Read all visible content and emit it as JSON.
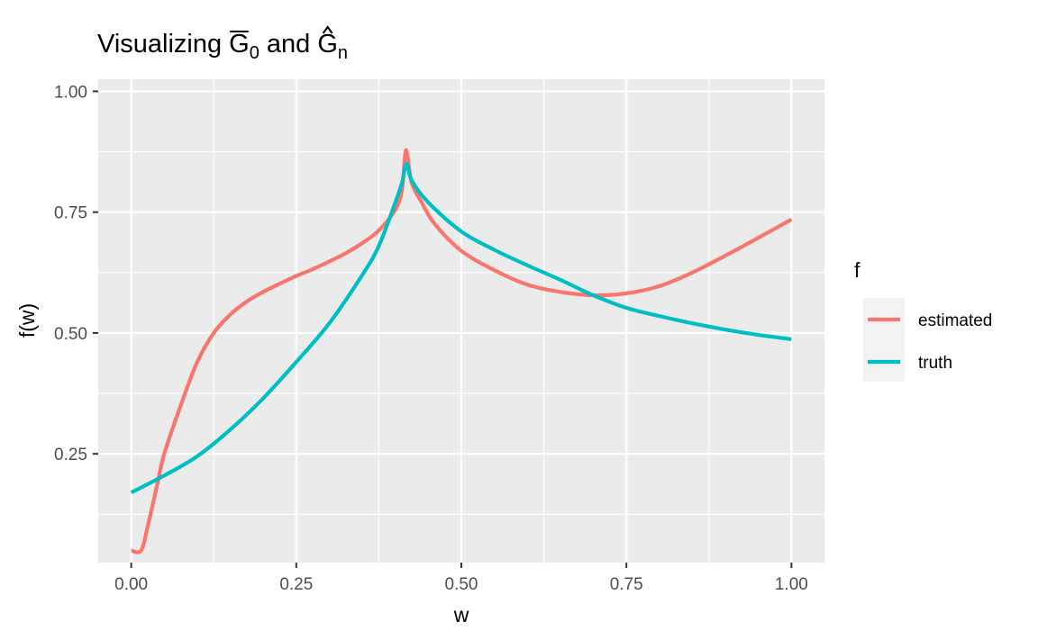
{
  "chart_data": {
    "type": "line",
    "title": {
      "prefix": "Visualizing ",
      "sym1": "G",
      "sub1": "0",
      "middle": " and ",
      "sym2": "G",
      "sub2": "n"
    },
    "xlabel": "w",
    "ylabel": "f(w)",
    "xlim": [
      -0.05,
      1.05
    ],
    "ylim": [
      0.025,
      1.025
    ],
    "x_ticks": [
      {
        "value": 0.0,
        "label": "0.00"
      },
      {
        "value": 0.25,
        "label": "0.25"
      },
      {
        "value": 0.5,
        "label": "0.50"
      },
      {
        "value": 0.75,
        "label": "0.75"
      },
      {
        "value": 1.0,
        "label": "1.00"
      }
    ],
    "y_ticks": [
      {
        "value": 0.25,
        "label": "0.25"
      },
      {
        "value": 0.5,
        "label": "0.50"
      },
      {
        "value": 0.75,
        "label": "0.75"
      },
      {
        "value": 1.0,
        "label": "1.00"
      }
    ],
    "grid": true,
    "legend": {
      "title": "f",
      "position": "right"
    },
    "series": [
      {
        "name": "estimated",
        "color": "#F8766D",
        "points": [
          [
            0.0,
            0.05
          ],
          [
            0.015,
            0.05
          ],
          [
            0.025,
            0.1
          ],
          [
            0.04,
            0.19
          ],
          [
            0.05,
            0.25
          ],
          [
            0.075,
            0.35
          ],
          [
            0.1,
            0.44
          ],
          [
            0.125,
            0.5
          ],
          [
            0.15,
            0.538
          ],
          [
            0.175,
            0.565
          ],
          [
            0.2,
            0.585
          ],
          [
            0.225,
            0.602
          ],
          [
            0.25,
            0.618
          ],
          [
            0.275,
            0.632
          ],
          [
            0.3,
            0.648
          ],
          [
            0.325,
            0.665
          ],
          [
            0.35,
            0.686
          ],
          [
            0.375,
            0.712
          ],
          [
            0.4,
            0.755
          ],
          [
            0.41,
            0.795
          ],
          [
            0.415,
            0.87
          ],
          [
            0.418,
            0.87
          ],
          [
            0.425,
            0.81
          ],
          [
            0.44,
            0.77
          ],
          [
            0.46,
            0.725
          ],
          [
            0.5,
            0.67
          ],
          [
            0.55,
            0.63
          ],
          [
            0.6,
            0.6
          ],
          [
            0.65,
            0.585
          ],
          [
            0.7,
            0.578
          ],
          [
            0.75,
            0.582
          ],
          [
            0.8,
            0.597
          ],
          [
            0.85,
            0.625
          ],
          [
            0.9,
            0.66
          ],
          [
            0.95,
            0.697
          ],
          [
            1.0,
            0.735
          ]
        ]
      },
      {
        "name": "truth",
        "color": "#00BFC4",
        "points": [
          [
            0.0,
            0.17
          ],
          [
            0.05,
            0.205
          ],
          [
            0.1,
            0.245
          ],
          [
            0.15,
            0.3
          ],
          [
            0.2,
            0.365
          ],
          [
            0.25,
            0.44
          ],
          [
            0.3,
            0.52
          ],
          [
            0.35,
            0.62
          ],
          [
            0.375,
            0.68
          ],
          [
            0.4,
            0.77
          ],
          [
            0.41,
            0.81
          ],
          [
            0.417,
            0.85
          ],
          [
            0.425,
            0.815
          ],
          [
            0.45,
            0.77
          ],
          [
            0.5,
            0.71
          ],
          [
            0.55,
            0.672
          ],
          [
            0.6,
            0.64
          ],
          [
            0.65,
            0.61
          ],
          [
            0.7,
            0.578
          ],
          [
            0.75,
            0.552
          ],
          [
            0.8,
            0.535
          ],
          [
            0.85,
            0.52
          ],
          [
            0.9,
            0.507
          ],
          [
            0.95,
            0.496
          ],
          [
            1.0,
            0.487
          ]
        ]
      }
    ]
  }
}
